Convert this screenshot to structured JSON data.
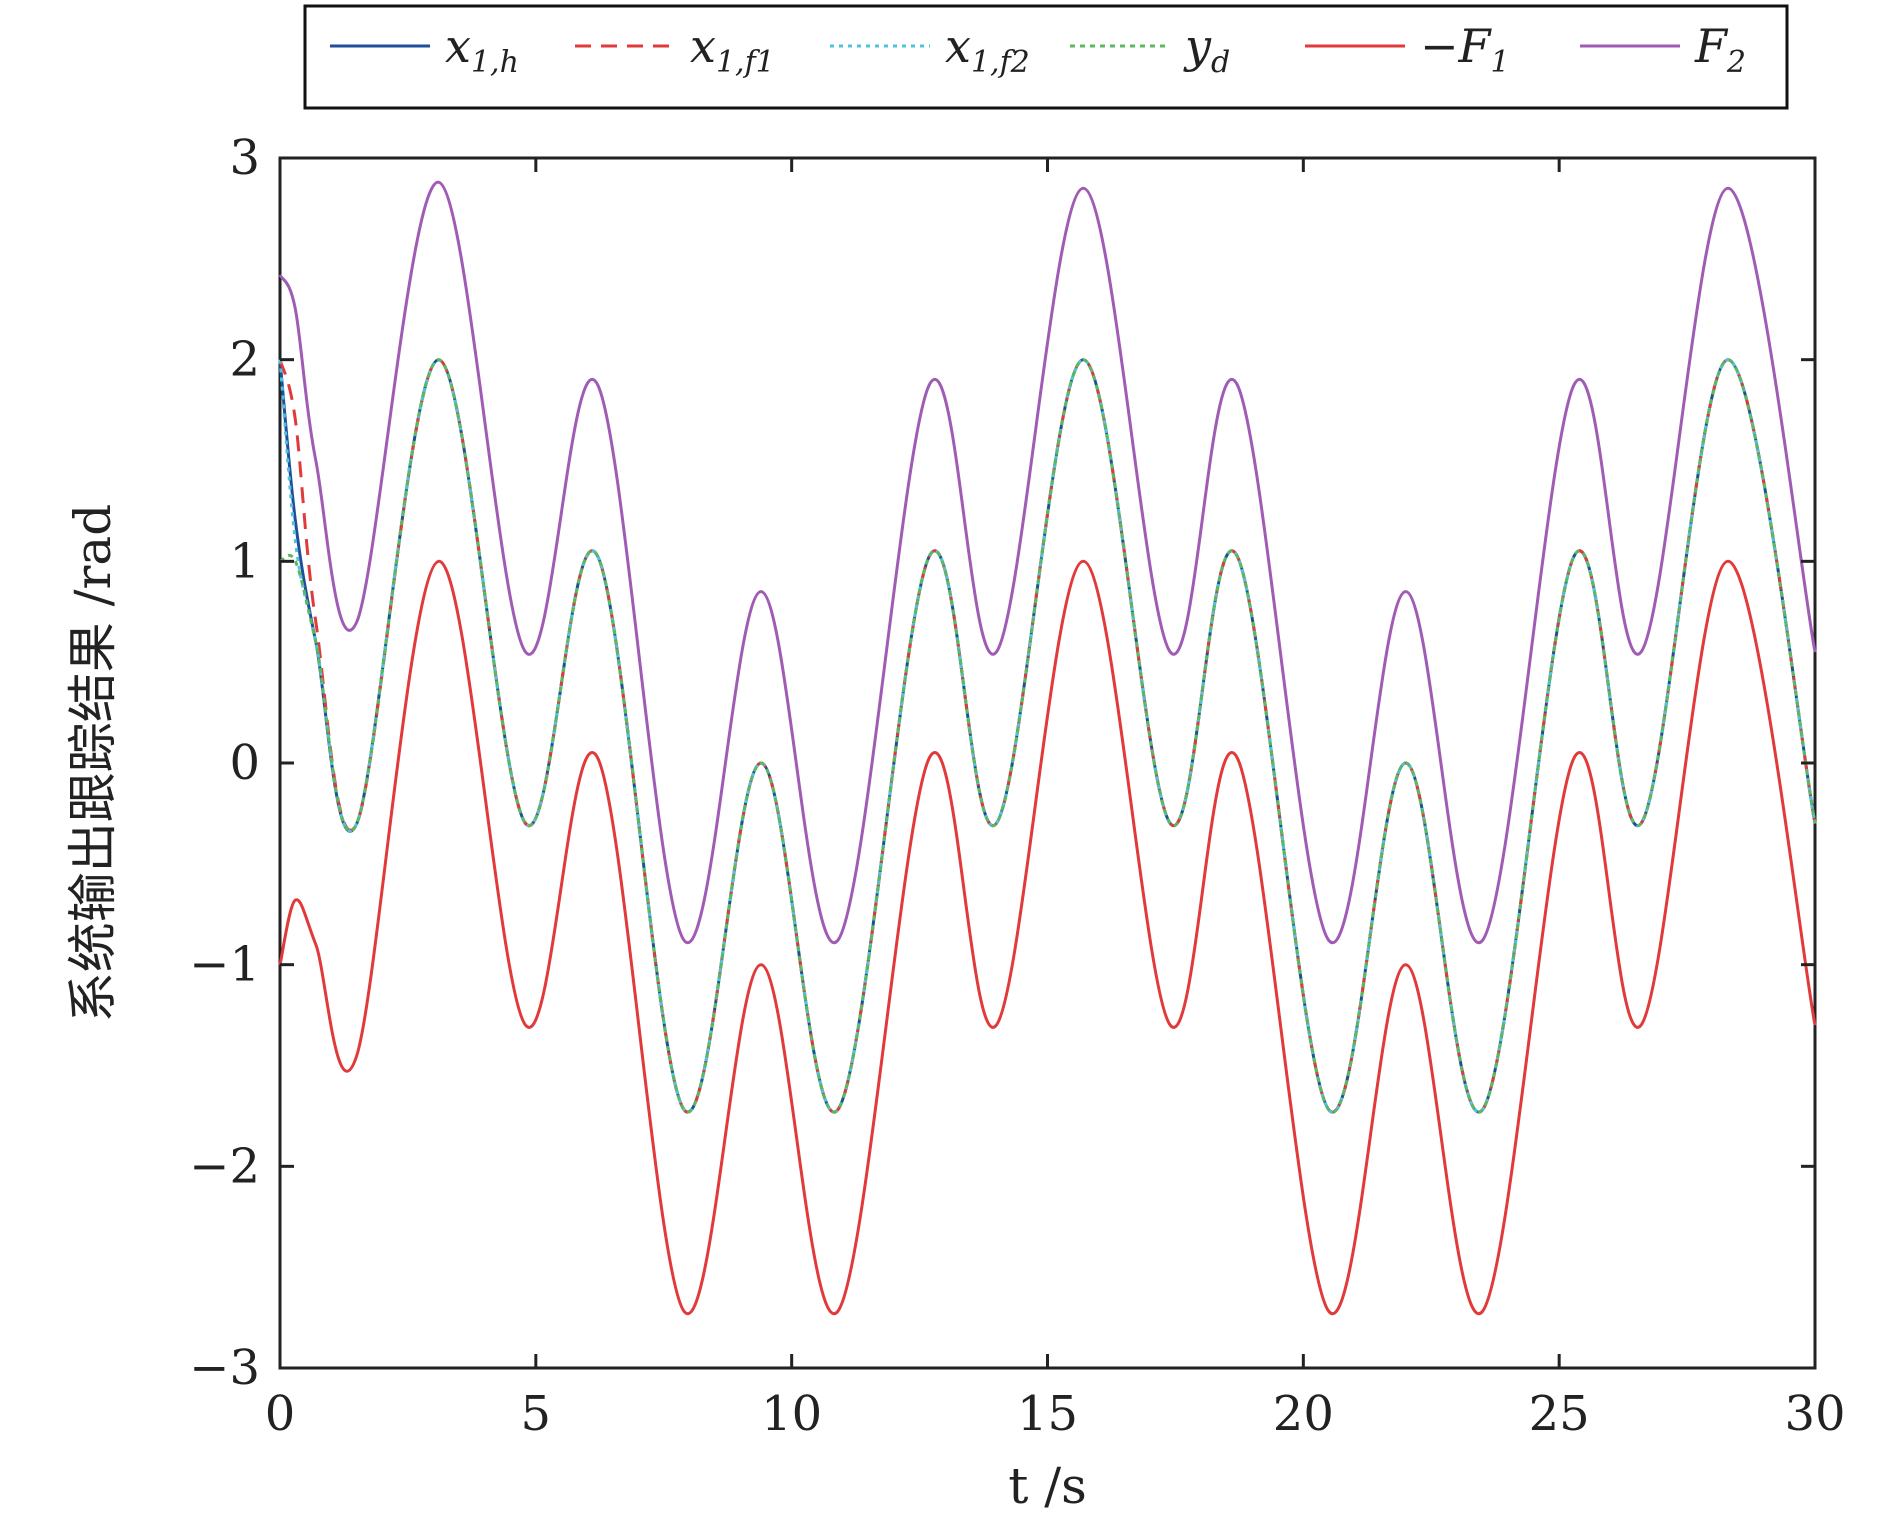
{
  "chart_data": {
    "type": "line",
    "title": "",
    "xlabel": "t /s",
    "ylabel": "系统输出跟踪结果 /rad",
    "xlim": [
      0,
      30
    ],
    "ylim": [
      -3,
      3
    ],
    "x_ticks": [
      "0",
      "5",
      "10",
      "15",
      "20",
      "25",
      "30"
    ],
    "y_ticks": [
      "3",
      "2",
      "1",
      "0",
      "−1",
      "−2",
      "−3"
    ],
    "grid": false,
    "legend_position": "top, outside, horizontal",
    "x_sample": [
      0,
      0.3,
      0.7,
      1.5,
      3.1,
      4.8,
      6.2,
      7.9,
      9.4,
      10.9,
      12.7,
      14.0,
      15.7,
      17.4,
      18.7,
      20.5,
      22.0,
      23.5,
      25.3,
      26.6,
      28.3,
      30.0
    ],
    "series": [
      {
        "name": "x1,h",
        "legend_main": "x",
        "legend_sub": "1,h",
        "color": "#1f4e9c",
        "dash": "",
        "width": 3,
        "values": [
          2.0,
          1.2,
          0.6,
          -0.3,
          2.0,
          -0.3,
          1.03,
          -1.72,
          0.0,
          -1.72,
          1.03,
          -0.3,
          2.0,
          -0.3,
          1.03,
          -1.72,
          0.0,
          -1.72,
          1.03,
          -0.3,
          2.0,
          -0.3
        ]
      },
      {
        "name": "x1,f1",
        "legend_main": "x",
        "legend_sub": "1,f1",
        "color": "#e03a3a",
        "dash": "16,10",
        "width": 3,
        "values": [
          2.0,
          1.7,
          0.7,
          -0.3,
          2.0,
          -0.3,
          1.03,
          -1.72,
          0.0,
          -1.72,
          1.03,
          -0.3,
          2.0,
          -0.3,
          1.03,
          -1.72,
          0.0,
          -1.72,
          1.03,
          -0.3,
          2.0,
          -0.3
        ]
      },
      {
        "name": "x1,f2",
        "legend_main": "x",
        "legend_sub": "1,f2",
        "color": "#4fc3d9",
        "dash": "4,5",
        "width": 3,
        "values": [
          2.0,
          1.1,
          0.6,
          -0.3,
          2.0,
          -0.3,
          1.03,
          -1.72,
          0.0,
          -1.72,
          1.03,
          -0.3,
          2.0,
          -0.3,
          1.03,
          -1.72,
          0.0,
          -1.72,
          1.03,
          -0.3,
          2.0,
          -0.3
        ]
      },
      {
        "name": "yd",
        "legend_main": "y",
        "legend_sub": "d",
        "color": "#5cb85c",
        "dash": "5,5",
        "width": 3,
        "values": [
          1.0,
          1.0,
          0.6,
          -0.3,
          2.0,
          -0.3,
          1.03,
          -1.72,
          0.0,
          -1.72,
          1.03,
          -0.3,
          2.0,
          -0.3,
          1.03,
          -1.72,
          0.0,
          -1.72,
          1.03,
          -0.3,
          2.0,
          -0.3
        ]
      },
      {
        "name": "−F1",
        "legend_main": "−F",
        "legend_sub": "1",
        "color": "#e03a3a",
        "dash": "",
        "width": 3,
        "values": [
          -1.0,
          -0.68,
          -0.9,
          -1.45,
          1.0,
          -1.3,
          0.03,
          -2.72,
          -1.0,
          -2.72,
          0.03,
          -1.3,
          1.0,
          -1.3,
          0.03,
          -2.72,
          -1.0,
          -2.72,
          0.03,
          -1.3,
          1.0,
          -1.3
        ]
      },
      {
        "name": "F2",
        "legend_main": "F",
        "legend_sub": "2",
        "color": "#a05cb4",
        "dash": "",
        "width": 3,
        "values": [
          2.42,
          2.25,
          1.5,
          0.7,
          2.88,
          0.55,
          1.88,
          -0.88,
          0.85,
          -0.88,
          1.88,
          0.55,
          2.85,
          0.55,
          1.88,
          -0.88,
          0.85,
          -0.88,
          1.88,
          0.55,
          2.85,
          0.55
        ]
      }
    ]
  }
}
